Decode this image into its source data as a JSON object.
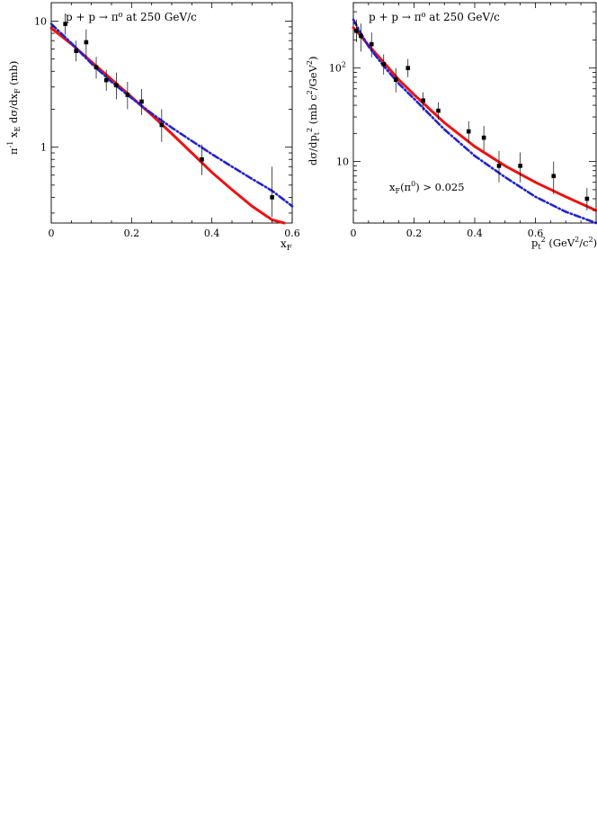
{
  "colors": {
    "model_solid": "#ee1111",
    "model_dashdot": "#2222cc",
    "data": "#000000"
  },
  "chart_data": [
    {
      "type": "scatter",
      "title": "p + p → π⁰  at 250 GeV/c",
      "xlabel": "x_F",
      "ylabel": "π⁻¹ x_E dσ/dx_F (mb)",
      "xlim": [
        0,
        0.6
      ],
      "ylim": [
        0.25,
        14
      ],
      "yscale": "log",
      "xticks": [
        0,
        0.2,
        0.4,
        0.6
      ],
      "xtick_labels": [
        "0",
        "0.2",
        "0.4",
        "0.6"
      ],
      "yticks": [
        1,
        10
      ],
      "ytick_labels": [
        "1",
        "10"
      ],
      "annotation": "",
      "grid": false,
      "legend": "none",
      "points": {
        "x": [
          0.035,
          0.062,
          0.087,
          0.112,
          0.137,
          0.162,
          0.19,
          0.225,
          0.275,
          0.375,
          0.55
        ],
        "y": [
          9.5,
          5.8,
          6.8,
          4.3,
          3.4,
          3.1,
          2.6,
          2.3,
          1.5,
          0.8,
          0.4
        ],
        "y_lo": [
          7.8,
          4.8,
          5.2,
          3.5,
          2.8,
          2.4,
          2.0,
          1.8,
          1.1,
          0.6,
          0.28
        ],
        "y_hi": [
          11.5,
          7.0,
          8.6,
          5.2,
          4.1,
          3.9,
          3.3,
          2.9,
          2.0,
          1.05,
          0.7
        ]
      },
      "series": [
        {
          "style": "solid",
          "color": "#ee1111",
          "x": [
            0,
            0.05,
            0.1,
            0.15,
            0.2,
            0.25,
            0.3,
            0.35,
            0.4,
            0.45,
            0.5,
            0.55,
            0.58
          ],
          "y": [
            8.8,
            6.6,
            4.75,
            3.45,
            2.5,
            1.8,
            1.28,
            0.9,
            0.63,
            0.46,
            0.34,
            0.265,
            0.25
          ]
        },
        {
          "style": "dashdot",
          "color": "#2222cc",
          "x": [
            0,
            0.05,
            0.1,
            0.15,
            0.2,
            0.25,
            0.3,
            0.35,
            0.4,
            0.45,
            0.5,
            0.55,
            0.6
          ],
          "y": [
            9.5,
            6.7,
            4.6,
            3.3,
            2.45,
            1.85,
            1.43,
            1.12,
            0.88,
            0.7,
            0.56,
            0.45,
            0.34
          ]
        }
      ]
    },
    {
      "type": "scatter",
      "title": "p + p → π⁰  at 250 GeV/c",
      "xlabel": "p_t² (GeV²/c²)",
      "ylabel": "dσ/dp_t² (mb c²/GeV²)",
      "xlim": [
        0,
        0.8
      ],
      "ylim": [
        2.2,
        500
      ],
      "yscale": "log",
      "xticks": [
        0,
        0.2,
        0.4,
        0.6
      ],
      "xtick_labels": [
        "0",
        "0.2",
        "0.4",
        "0.6"
      ],
      "yticks": [
        10,
        100
      ],
      "ytick_labels": [
        "10",
        "10²"
      ],
      "annotation": "x_F(π⁰) > 0.025",
      "grid": false,
      "legend": "none",
      "points": {
        "x": [
          0.01,
          0.025,
          0.06,
          0.1,
          0.14,
          0.18,
          0.23,
          0.28,
          0.38,
          0.43,
          0.48,
          0.55,
          0.66,
          0.77
        ],
        "y": [
          250,
          220,
          180,
          110,
          75,
          100,
          45,
          35,
          21,
          18,
          9,
          9,
          7,
          4
        ],
        "y_lo": [
          190,
          150,
          130,
          85,
          55,
          80,
          35,
          28,
          16,
          13,
          6,
          6,
          4.5,
          3
        ],
        "y_hi": [
          330,
          300,
          240,
          140,
          100,
          125,
          55,
          43,
          27,
          24,
          13,
          12.5,
          10,
          5.2
        ]
      },
      "series": [
        {
          "style": "solid",
          "color": "#ee1111",
          "x": [
            0,
            0.02,
            0.05,
            0.1,
            0.15,
            0.2,
            0.3,
            0.4,
            0.5,
            0.6,
            0.7,
            0.8
          ],
          "y": [
            270,
            230,
            175,
            115,
            75,
            52,
            26,
            14.5,
            9,
            6,
            4.2,
            3.0
          ]
        },
        {
          "style": "dashdot",
          "color": "#2222cc",
          "x": [
            0,
            0.02,
            0.05,
            0.1,
            0.15,
            0.2,
            0.3,
            0.4,
            0.5,
            0.6,
            0.7,
            0.8
          ],
          "y": [
            330,
            250,
            170,
            105,
            68,
            47,
            22,
            11.5,
            6.8,
            4.2,
            2.9,
            2.2
          ]
        }
      ]
    }
  ]
}
